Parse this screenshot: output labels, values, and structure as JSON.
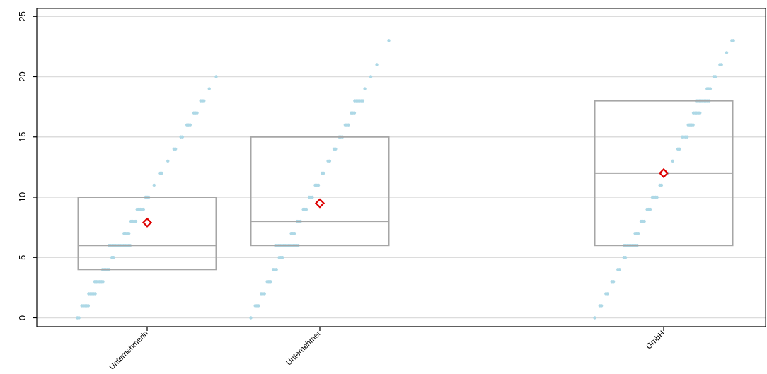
{
  "chart_data": {
    "type": "box",
    "categories": [
      "Unternehmerin",
      "Unternehmer",
      "GmbH"
    ],
    "category_positions": [
      1,
      2,
      4
    ],
    "ylim": [
      -0.7,
      25.5
    ],
    "yticks": [
      0,
      5,
      10,
      15,
      20,
      25
    ],
    "ytick_labels": [
      "0",
      "5",
      "10",
      "15",
      "20",
      "25"
    ],
    "grid": true,
    "boxes": [
      {
        "category": "Unternehmerin",
        "q1": 4,
        "median": 6,
        "q3": 10,
        "mean": 7.9
      },
      {
        "category": "Unternehmer",
        "q1": 6,
        "median": 8,
        "q3": 15,
        "mean": 9.5
      },
      {
        "category": "GmbH",
        "q1": 6,
        "median": 12,
        "q3": 18,
        "mean": 12
      }
    ],
    "points": [
      {
        "category": "Unternehmerin",
        "levels": [
          {
            "y": 0,
            "n": 2
          },
          {
            "y": 1,
            "n": 5
          },
          {
            "y": 2,
            "n": 5
          },
          {
            "y": 3,
            "n": 6
          },
          {
            "y": 4,
            "n": 5
          },
          {
            "y": 5,
            "n": 2
          },
          {
            "y": 6,
            "n": 14
          },
          {
            "y": 7,
            "n": 4
          },
          {
            "y": 8,
            "n": 4
          },
          {
            "y": 9,
            "n": 5
          },
          {
            "y": 10,
            "n": 3
          },
          {
            "y": 11,
            "n": 1
          },
          {
            "y": 12,
            "n": 2
          },
          {
            "y": 13,
            "n": 1
          },
          {
            "y": 14,
            "n": 2
          },
          {
            "y": 15,
            "n": 2
          },
          {
            "y": 16,
            "n": 3
          },
          {
            "y": 17,
            "n": 3
          },
          {
            "y": 18,
            "n": 3
          },
          {
            "y": 19,
            "n": 1
          },
          {
            "y": 20,
            "n": 1
          }
        ]
      },
      {
        "category": "Unternehmer",
        "levels": [
          {
            "y": 0,
            "n": 1
          },
          {
            "y": 1,
            "n": 3
          },
          {
            "y": 2,
            "n": 3
          },
          {
            "y": 3,
            "n": 3
          },
          {
            "y": 4,
            "n": 3
          },
          {
            "y": 5,
            "n": 3
          },
          {
            "y": 6,
            "n": 15
          },
          {
            "y": 7,
            "n": 3
          },
          {
            "y": 8,
            "n": 3
          },
          {
            "y": 9,
            "n": 3
          },
          {
            "y": 10,
            "n": 3
          },
          {
            "y": 11,
            "n": 3
          },
          {
            "y": 12,
            "n": 2
          },
          {
            "y": 13,
            "n": 2
          },
          {
            "y": 14,
            "n": 2
          },
          {
            "y": 15,
            "n": 3
          },
          {
            "y": 16,
            "n": 3
          },
          {
            "y": 17,
            "n": 3
          },
          {
            "y": 18,
            "n": 6
          },
          {
            "y": 19,
            "n": 1
          },
          {
            "y": 20,
            "n": 1
          },
          {
            "y": 21,
            "n": 1
          },
          {
            "y": 23,
            "n": 1
          }
        ]
      },
      {
        "category": "GmbH",
        "levels": [
          {
            "y": 0,
            "n": 1
          },
          {
            "y": 1,
            "n": 2
          },
          {
            "y": 2,
            "n": 2
          },
          {
            "y": 3,
            "n": 2
          },
          {
            "y": 4,
            "n": 2
          },
          {
            "y": 5,
            "n": 2
          },
          {
            "y": 6,
            "n": 9
          },
          {
            "y": 7,
            "n": 3
          },
          {
            "y": 8,
            "n": 3
          },
          {
            "y": 9,
            "n": 3
          },
          {
            "y": 10,
            "n": 4
          },
          {
            "y": 11,
            "n": 2
          },
          {
            "y": 12,
            "n": 3
          },
          {
            "y": 13,
            "n": 1
          },
          {
            "y": 14,
            "n": 2
          },
          {
            "y": 15,
            "n": 4
          },
          {
            "y": 16,
            "n": 4
          },
          {
            "y": 17,
            "n": 5
          },
          {
            "y": 18,
            "n": 9
          },
          {
            "y": 19,
            "n": 3
          },
          {
            "y": 20,
            "n": 2
          },
          {
            "y": 21,
            "n": 2
          },
          {
            "y": 22,
            "n": 1
          },
          {
            "y": 23,
            "n": 2
          }
        ]
      }
    ],
    "colors": {
      "box": "#a6a6a6",
      "points": "#add8e6",
      "mean_marker": "#dd0000",
      "grid": "#dcdcdc",
      "axis": "#000000"
    }
  }
}
